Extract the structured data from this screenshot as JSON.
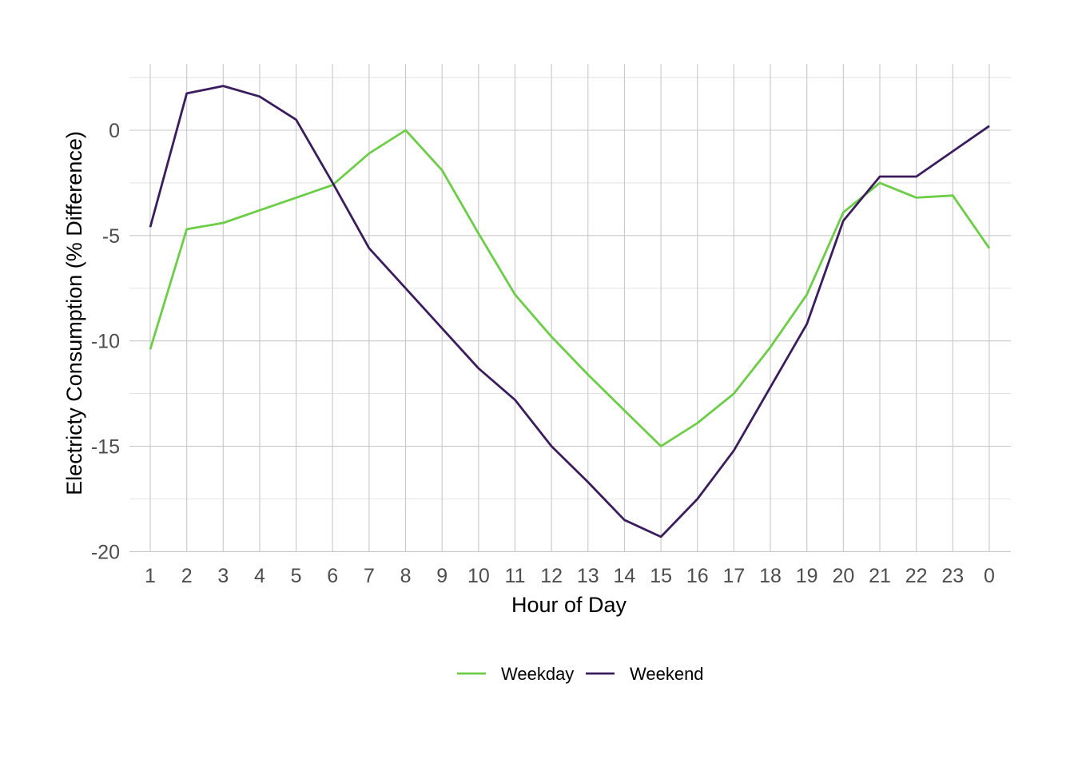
{
  "chart_data": {
    "type": "line",
    "title": "",
    "xlabel": "Hour of Day",
    "ylabel": "Electricty Consumption (% Difference)",
    "categories": [
      "1",
      "2",
      "3",
      "4",
      "5",
      "6",
      "7",
      "8",
      "9",
      "10",
      "11",
      "12",
      "13",
      "14",
      "15",
      "16",
      "17",
      "18",
      "19",
      "20",
      "21",
      "22",
      "23",
      "0"
    ],
    "yticks": [
      0,
      -5,
      -10,
      -15,
      -20
    ],
    "ylim": [
      -20,
      2.5
    ],
    "grid": true,
    "legend_position": "bottom",
    "series": [
      {
        "name": "Weekday",
        "color": "#6ccd47",
        "values": [
          -10.4,
          -4.7,
          -4.4,
          -3.8,
          -3.2,
          -2.6,
          -1.1,
          0.0,
          -1.9,
          -4.9,
          -7.8,
          -9.8,
          -11.6,
          -13.3,
          -15.0,
          -13.9,
          -12.5,
          -10.3,
          -7.8,
          -3.9,
          -2.5,
          -3.2,
          -3.1,
          -5.6
        ]
      },
      {
        "name": "Weekend",
        "color": "#3b1d5e",
        "values": [
          -4.6,
          1.75,
          2.1,
          1.6,
          0.5,
          -2.5,
          -5.6,
          -7.5,
          -9.4,
          -11.3,
          -12.8,
          -15.0,
          -16.7,
          -18.5,
          -19.3,
          -17.5,
          -15.2,
          -12.2,
          -9.2,
          -4.3,
          -2.2,
          -2.2,
          -1.0,
          0.2
        ]
      }
    ]
  }
}
